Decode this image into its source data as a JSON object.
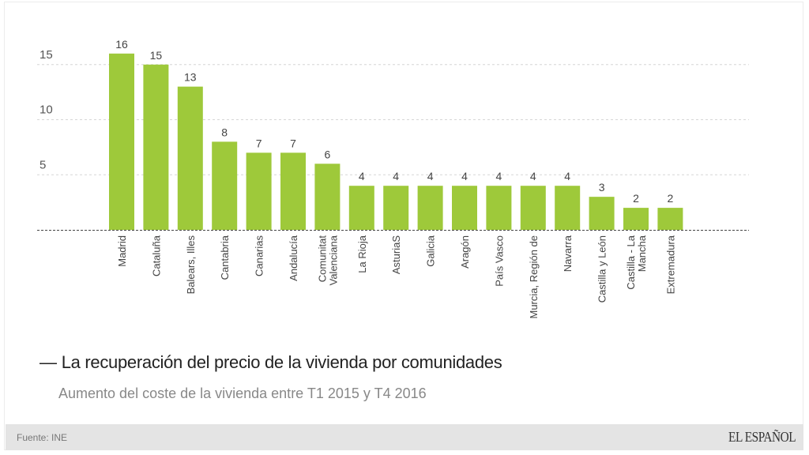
{
  "chart_data": {
    "type": "bar",
    "title": "La recuperación del precio de la vivienda por comunidades",
    "subtitle": "Aumento del coste de la vivienda entre T1 2015 y T4 2016",
    "xlabel": "",
    "ylabel": "",
    "ylim": [
      0,
      16
    ],
    "yticks": [
      5,
      10,
      15
    ],
    "grid": true,
    "bar_color": "#9ec93a",
    "categories": [
      "Madrid",
      "Cataluña",
      "Balears, Illes",
      "Cantabria",
      "Canarias",
      "Andalucía",
      "Comunitat Valenciana",
      "La Rioja",
      "AsturiaS",
      "Galicia",
      "Aragón",
      "País Vasco",
      "Murcia, Región de",
      "Navarra",
      "Castilla y León",
      "Castilla - La Mancha",
      "Extremadura"
    ],
    "category_lines": [
      [
        "Madrid"
      ],
      [
        "Cataluña"
      ],
      [
        "Balears, Illes"
      ],
      [
        "Cantabria"
      ],
      [
        "Canarias"
      ],
      [
        "Andalucía"
      ],
      [
        "Comunitat",
        "Valenciana"
      ],
      [
        "La Rioja"
      ],
      [
        "AsturiaS"
      ],
      [
        "Galicia"
      ],
      [
        "Aragón"
      ],
      [
        "País Vasco"
      ],
      [
        "Murcia, Región de"
      ],
      [
        "Navarra"
      ],
      [
        "Castilla y León"
      ],
      [
        "Castilla - La",
        "Mancha"
      ],
      [
        "Extremadura"
      ]
    ],
    "values": [
      16,
      15,
      13,
      8,
      7,
      7,
      6,
      4,
      4,
      4,
      4,
      4,
      4,
      4,
      3,
      2,
      2
    ]
  },
  "header": {
    "dash": "—",
    "title": "La recuperación del precio de la vivienda por comunidades",
    "subtitle": "Aumento del coste de la vivienda entre T1 2015 y T4 2016"
  },
  "footer": {
    "source": "Fuente: INE",
    "brand": "EL ESPAÑOL"
  }
}
